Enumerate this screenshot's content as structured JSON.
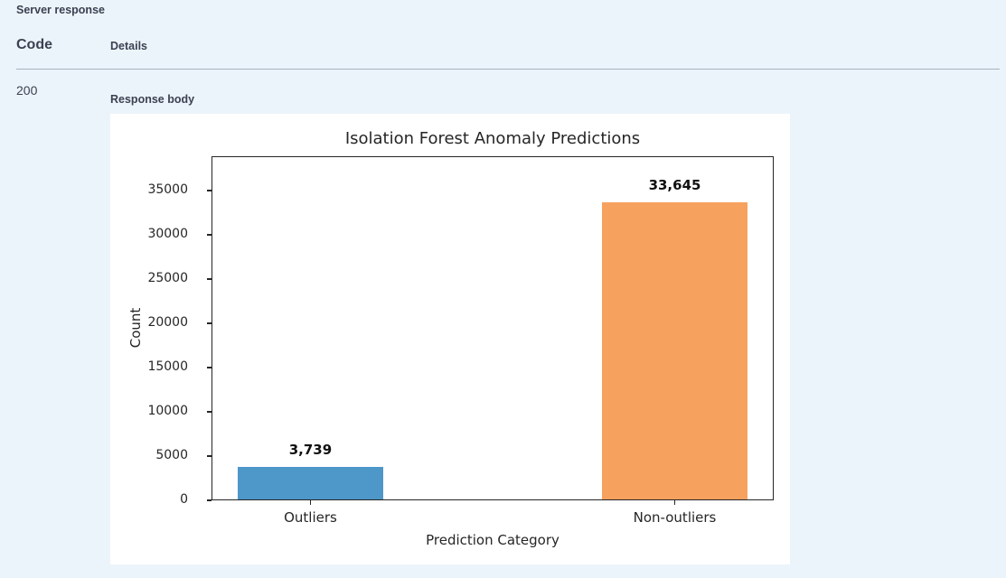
{
  "server_response": {
    "title": "Server response",
    "columns": {
      "code": "Code",
      "details": "Details"
    },
    "row": {
      "code": "200",
      "response_body_label": "Response body"
    }
  },
  "chart_data": {
    "type": "bar",
    "title": "Isolation Forest Anomaly Predictions",
    "xlabel": "Prediction Category",
    "ylabel": "Count",
    "categories": [
      "Outliers",
      "Non-outliers"
    ],
    "values": [
      3739,
      33645
    ],
    "value_labels": [
      "3,739",
      "33,645"
    ],
    "bar_colors": [
      "#4d97c9",
      "#f6a25e"
    ],
    "ylim": [
      0,
      38878
    ],
    "yticks": [
      0,
      5000,
      10000,
      15000,
      20000,
      25000,
      30000,
      35000
    ],
    "grid": false,
    "legend": "none",
    "layout": {
      "bar_center_fracs": [
        0.176,
        0.824
      ],
      "bar_width_frac": 0.26
    }
  },
  "colors": {
    "page_background": "#ecf4fb",
    "header_text": "#3b4151",
    "divider": "#a8b0bd",
    "chart_text": "#262626",
    "bar_blue": "#4d97c9",
    "bar_orange": "#f6a25e"
  }
}
